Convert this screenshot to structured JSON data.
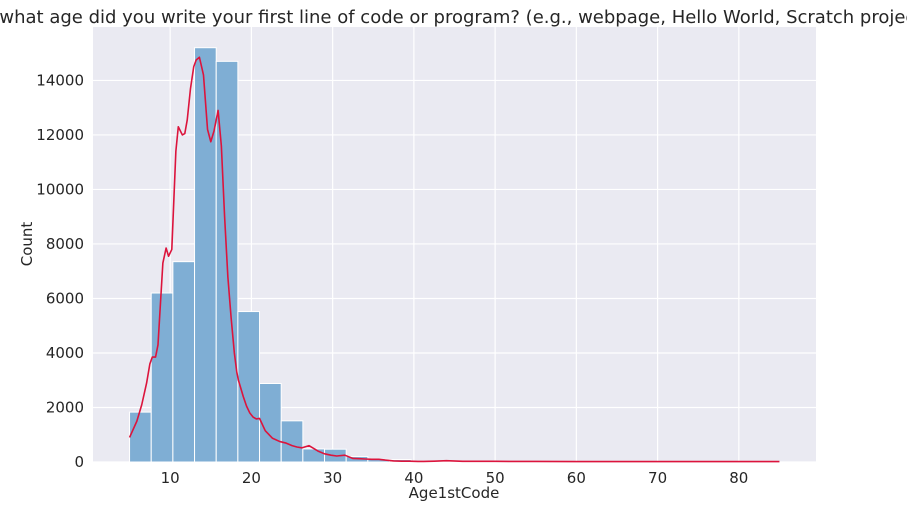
{
  "chart_data": {
    "type": "bar",
    "title": "At what age did you write your first line of code or program? (e.g., webpage, Hello World, Scratch project)",
    "xlabel": "Age1stCode",
    "ylabel": "Count",
    "xlim": [
      0.5,
      89.5
    ],
    "ylim": [
      0,
      15960
    ],
    "grid": true,
    "xticks": [
      10,
      20,
      30,
      40,
      50,
      60,
      70,
      80
    ],
    "yticks": [
      0,
      2000,
      4000,
      6000,
      8000,
      10000,
      12000,
      14000
    ],
    "colors": {
      "bar": "#7faed4",
      "bar_edge": "#ffffff",
      "kde": "#dc143c",
      "background": "#eaeaf2",
      "grid": "#ffffff"
    },
    "bins": [
      {
        "x0": 5,
        "x1": 7.667,
        "count": 1830
      },
      {
        "x0": 7.667,
        "x1": 10.333,
        "count": 6200
      },
      {
        "x0": 10.333,
        "x1": 13,
        "count": 7350
      },
      {
        "x0": 13,
        "x1": 15.667,
        "count": 15200
      },
      {
        "x0": 15.667,
        "x1": 18.333,
        "count": 14700
      },
      {
        "x0": 18.333,
        "x1": 21,
        "count": 5520
      },
      {
        "x0": 21,
        "x1": 23.667,
        "count": 2880
      },
      {
        "x0": 23.667,
        "x1": 26.333,
        "count": 1510
      },
      {
        "x0": 26.333,
        "x1": 29,
        "count": 480
      },
      {
        "x0": 29,
        "x1": 31.667,
        "count": 470
      },
      {
        "x0": 31.667,
        "x1": 34.333,
        "count": 200
      },
      {
        "x0": 34.333,
        "x1": 37,
        "count": 95
      },
      {
        "x0": 37,
        "x1": 39.667,
        "count": 90
      },
      {
        "x0": 39.667,
        "x1": 42.333,
        "count": 20
      },
      {
        "x0": 42.333,
        "x1": 45,
        "count": 15
      },
      {
        "x0": 45,
        "x1": 47.667,
        "count": 12
      },
      {
        "x0": 47.667,
        "x1": 50.333,
        "count": 12
      },
      {
        "x0": 50.333,
        "x1": 53,
        "count": 8
      },
      {
        "x0": 53,
        "x1": 55.667,
        "count": 5
      },
      {
        "x0": 55.667,
        "x1": 58.333,
        "count": 4
      },
      {
        "x0": 58.333,
        "x1": 61,
        "count": 4
      },
      {
        "x0": 61,
        "x1": 63.667,
        "count": 3
      },
      {
        "x0": 63.667,
        "x1": 66.333,
        "count": 3
      },
      {
        "x0": 66.333,
        "x1": 69,
        "count": 2
      },
      {
        "x0": 69,
        "x1": 71.667,
        "count": 2
      },
      {
        "x0": 71.667,
        "x1": 74.333,
        "count": 2
      },
      {
        "x0": 74.333,
        "x1": 77,
        "count": 2
      },
      {
        "x0": 77,
        "x1": 79.667,
        "count": 2
      },
      {
        "x0": 79.667,
        "x1": 82.333,
        "count": 2
      },
      {
        "x0": 82.333,
        "x1": 85,
        "count": 2
      }
    ],
    "kde": {
      "x": [
        5,
        5.9,
        6.5,
        7.1,
        7.5,
        7.8,
        8.2,
        8.5,
        9.1,
        9.5,
        9.8,
        10.2,
        10.7,
        11,
        11.5,
        11.8,
        12.1,
        12.5,
        12.9,
        13.2,
        13.6,
        14.1,
        14.6,
        15,
        15.4,
        15.9,
        16.3,
        16.7,
        17.1,
        17.5,
        17.9,
        18.2,
        18.4,
        18.7,
        19,
        19.4,
        19.8,
        20.2,
        20.6,
        21,
        21.7,
        22.6,
        23.5,
        24.2,
        25,
        25.6,
        26.2,
        27.1,
        28.2,
        29,
        29.8,
        30.5,
        31.5,
        32.5,
        33.3,
        34,
        34.8,
        35.7,
        36.5,
        37.5,
        38.5,
        39.5,
        40.5,
        41.2,
        42.5,
        44,
        46,
        48,
        50,
        52,
        55,
        60,
        65,
        70,
        75,
        80,
        85
      ],
      "y": [
        900,
        1500,
        2100,
        2900,
        3600,
        3850,
        3850,
        4300,
        7300,
        7850,
        7550,
        7800,
        11400,
        12300,
        12000,
        12050,
        12550,
        13700,
        14500,
        14750,
        14850,
        14200,
        12200,
        11750,
        12150,
        12900,
        11600,
        9000,
        6800,
        5300,
        4000,
        3300,
        3000,
        2700,
        2400,
        2050,
        1800,
        1650,
        1580,
        1600,
        1150,
        870,
        750,
        700,
        600,
        550,
        520,
        600,
        400,
        300,
        250,
        220,
        250,
        130,
        120,
        110,
        100,
        100,
        70,
        40,
        30,
        30,
        20,
        20,
        30,
        50,
        25,
        25,
        25,
        20,
        20,
        15,
        15,
        15,
        15,
        15,
        15
      ]
    }
  }
}
